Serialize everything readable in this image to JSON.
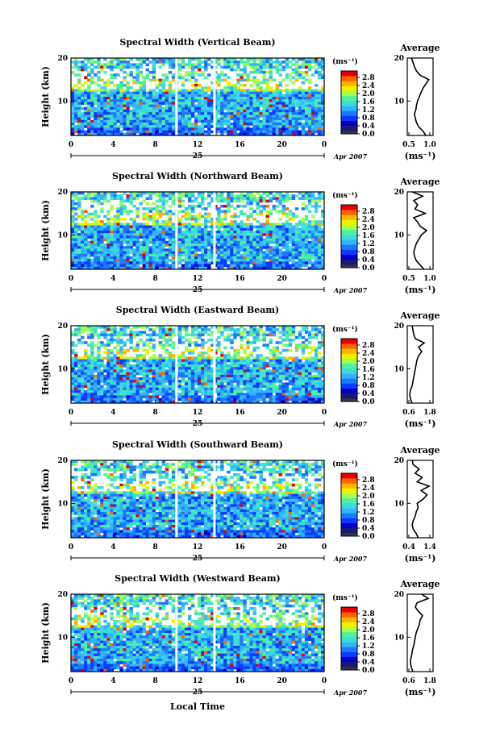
{
  "chart_data": [
    {
      "type": "heatmap",
      "title": "Spectral Width (Vertical Beam)",
      "ylabel": "Height (km)",
      "x_ticks": [
        "0",
        "4",
        "8",
        "12",
        "16",
        "20",
        "0"
      ],
      "y_ticks": [
        "10",
        "20"
      ],
      "date_day": "25",
      "date_month_year": "Apr 2007",
      "colorbar_unit": "(ms⁻¹)",
      "colorbar_ticks": [
        "2.8",
        "2.4",
        "2.0",
        "1.6",
        "1.2",
        "0.8",
        "0.4",
        "0.0"
      ],
      "average": {
        "title": "Average",
        "xlabel": "(ms⁻¹)",
        "x_ticks": [
          "0.5",
          "1.0"
        ],
        "xlim": [
          0.3,
          1.2
        ],
        "ylim": [
          2,
          20
        ],
        "y_ticks": [
          "10",
          "20"
        ],
        "height_km": [
          2,
          3,
          4,
          5,
          6,
          7,
          8,
          9,
          10,
          11,
          12,
          13,
          14,
          15,
          16,
          17,
          18,
          19,
          20
        ],
        "width": [
          0.95,
          0.85,
          0.7,
          0.62,
          0.58,
          0.55,
          0.6,
          0.62,
          0.66,
          0.72,
          0.78,
          0.85,
          0.95,
          1.05,
          0.75,
          0.62,
          0.55,
          0.5,
          0.45
        ]
      }
    },
    {
      "type": "heatmap",
      "title": "Spectral Width (Northward Beam)",
      "ylabel": "Height (km)",
      "x_ticks": [
        "0",
        "4",
        "8",
        "12",
        "16",
        "20",
        "0"
      ],
      "y_ticks": [
        "10",
        "20"
      ],
      "date_day": "25",
      "date_month_year": "Apr 2007",
      "colorbar_unit": "(ms⁻¹)",
      "colorbar_ticks": [
        "2.8",
        "2.4",
        "2.0",
        "1.6",
        "1.2",
        "0.8",
        "0.4",
        "0.0"
      ],
      "average": {
        "title": "Average",
        "xlabel": "(ms⁻¹)",
        "x_ticks": [
          "0.5",
          "1.0"
        ],
        "xlim": [
          0.3,
          1.3
        ],
        "ylim": [
          2,
          20
        ],
        "y_ticks": [
          "10",
          "20"
        ],
        "height_km": [
          2,
          3,
          4,
          5,
          6,
          7,
          8,
          9,
          10,
          11,
          12,
          13,
          14,
          15,
          16,
          17,
          18,
          19,
          20
        ],
        "width": [
          0.95,
          0.8,
          0.65,
          0.58,
          0.55,
          0.6,
          0.65,
          0.75,
          0.85,
          1.05,
          0.8,
          0.7,
          0.55,
          1.0,
          0.6,
          0.7,
          0.55,
          0.9,
          0.5
        ]
      }
    },
    {
      "type": "heatmap",
      "title": "Spectral Width (Eastward Beam)",
      "ylabel": "Height (km)",
      "x_ticks": [
        "0",
        "4",
        "8",
        "12",
        "16",
        "20",
        "0"
      ],
      "y_ticks": [
        "10",
        "20"
      ],
      "date_day": "25",
      "date_month_year": "Apr 2007",
      "colorbar_unit": "(ms⁻¹)",
      "colorbar_ticks": [
        "2.8",
        "2.4",
        "2.0",
        "1.6",
        "1.2",
        "0.8",
        "0.4",
        "0.0"
      ],
      "average": {
        "title": "Average",
        "xlabel": "(ms⁻¹)",
        "x_ticks": [
          "0.6",
          "1.8"
        ],
        "xlim": [
          0.4,
          2.0
        ],
        "ylim": [
          2,
          20
        ],
        "y_ticks": [
          "10",
          "20"
        ],
        "height_km": [
          2,
          3,
          4,
          5,
          6,
          7,
          8,
          9,
          10,
          11,
          12,
          13,
          14,
          15,
          16,
          17,
          18,
          19,
          20
        ],
        "width": [
          0.7,
          0.6,
          0.55,
          0.6,
          0.7,
          0.75,
          0.8,
          0.85,
          0.9,
          0.95,
          1.0,
          1.1,
          1.3,
          1.1,
          1.45,
          0.9,
          0.8,
          0.75,
          0.7
        ]
      }
    },
    {
      "type": "heatmap",
      "title": "Spectral Width (Southward Beam)",
      "ylabel": "Height (km)",
      "x_ticks": [
        "0",
        "4",
        "8",
        "12",
        "16",
        "20",
        "0"
      ],
      "y_ticks": [
        "10",
        "20"
      ],
      "date_day": "25",
      "date_month_year": "Apr 2007",
      "colorbar_unit": "(ms⁻¹)",
      "colorbar_ticks": [
        "2.8",
        "2.4",
        "2.0",
        "1.6",
        "1.2",
        "0.8",
        "0.4",
        "0.0"
      ],
      "average": {
        "title": "Average",
        "xlabel": "(ms⁻¹)",
        "x_ticks": [
          "0.4",
          "1.4"
        ],
        "xlim": [
          0.3,
          1.6
        ],
        "ylim": [
          2,
          20
        ],
        "y_ticks": [
          "10",
          "20"
        ],
        "height_km": [
          2,
          3,
          4,
          5,
          6,
          7,
          8,
          9,
          10,
          11,
          12,
          13,
          14,
          15,
          16,
          17,
          18,
          19,
          20
        ],
        "width": [
          0.85,
          0.75,
          0.6,
          0.55,
          0.6,
          0.7,
          0.75,
          0.85,
          0.8,
          1.1,
          1.3,
          1.0,
          1.4,
          0.8,
          1.05,
          0.7,
          0.9,
          0.6,
          0.55
        ]
      }
    },
    {
      "type": "heatmap",
      "title": "Spectral Width (Westward Beam)",
      "ylabel": "Height (km)",
      "x_ticks": [
        "0",
        "4",
        "8",
        "12",
        "16",
        "20",
        "0"
      ],
      "y_ticks": [
        "10",
        "20"
      ],
      "date_day": "25",
      "date_month_year": "Apr 2007",
      "colorbar_unit": "(ms⁻¹)",
      "colorbar_ticks": [
        "2.8",
        "2.4",
        "2.0",
        "1.6",
        "1.2",
        "0.8",
        "0.4",
        "0.0"
      ],
      "average": {
        "title": "Average",
        "xlabel": "(ms⁻¹)",
        "x_ticks": [
          "0.6",
          "1.8"
        ],
        "xlim": [
          0.4,
          2.0
        ],
        "ylim": [
          2,
          20
        ],
        "y_ticks": [
          "10",
          "20"
        ],
        "height_km": [
          2,
          3,
          4,
          5,
          6,
          7,
          8,
          9,
          10,
          11,
          12,
          13,
          14,
          15,
          16,
          17,
          18,
          19,
          20
        ],
        "width": [
          0.75,
          0.65,
          0.6,
          0.62,
          0.68,
          0.72,
          0.8,
          0.85,
          0.9,
          0.95,
          1.05,
          1.15,
          1.2,
          1.35,
          1.1,
          0.9,
          1.0,
          1.7,
          1.3
        ]
      }
    }
  ],
  "x_axis_label": "Local Time",
  "colors": {
    "colormap": [
      "#1a1a6e",
      "#0000c8",
      "#0a3cff",
      "#1e78ff",
      "#32b4ff",
      "#3cdcdc",
      "#50f0a0",
      "#a0ff50",
      "#f0f000",
      "#ffb400",
      "#ff6400",
      "#e60000"
    ],
    "gap": "#ffffff"
  }
}
